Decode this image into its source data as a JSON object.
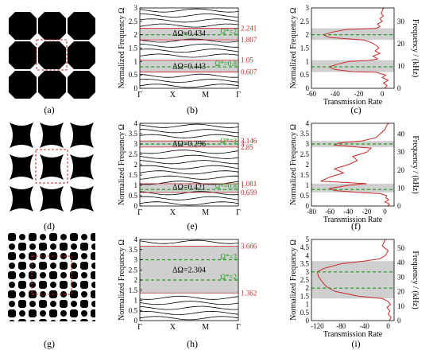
{
  "colors": {
    "gap": "#cfcfcf",
    "green": "#1a9e1a",
    "red": "#cc2a2a",
    "ink": "#000000"
  },
  "panel_labels": [
    "(a)",
    "(b)",
    "(c)",
    "(d)",
    "(e)",
    "(f)",
    "(g)",
    "(h)",
    "(i)"
  ],
  "band_axis": {
    "ylabel": "Normalized Frequency Ω",
    "xticks": [
      "Γ",
      "X",
      "M",
      "Γ"
    ]
  },
  "trans_axis": {
    "xlabel": "Transmission Rate",
    "ylabel_right": "Frequency / (kHz)"
  },
  "chart_data": [
    {
      "type": "line",
      "panel": "b",
      "ylim": [
        0,
        3
      ],
      "yticks": [
        "0",
        "0.5",
        "1",
        "1.5",
        "2",
        "2.5",
        "3"
      ],
      "gaps": [
        [
          0.607,
          1.05
        ],
        [
          1.807,
          2.241
        ]
      ],
      "gap_labels": [
        {
          "text": "ΔΩ=0.434",
          "y": 2.05
        },
        {
          "text": "ΔΩ=0.443",
          "y": 0.82
        }
      ],
      "targets": [
        {
          "text": "Ω*=2",
          "y": 2.0
        },
        {
          "text": "Ω*=0.8",
          "y": 0.8
        }
      ],
      "edge_labels": [
        {
          "text": "2.241",
          "y": 2.241
        },
        {
          "text": "1.807",
          "y": 1.807
        },
        {
          "text": "1.05",
          "y": 1.05
        },
        {
          "text": "0.607",
          "y": 0.607
        }
      ]
    },
    {
      "type": "line",
      "panel": "c",
      "xlim": [
        -60,
        10
      ],
      "xticks": [
        "-60",
        "-40",
        "-20",
        "0"
      ],
      "ylim": [
        0,
        3
      ],
      "yticks": [
        "0",
        "0.5",
        "1",
        "1.5",
        "2",
        "2.5",
        "3"
      ],
      "y2ticks": [
        "0",
        "10",
        "20",
        "30"
      ],
      "gaps": [
        [
          0.607,
          1.05
        ],
        [
          1.807,
          2.241
        ]
      ],
      "targets": [
        2.0,
        0.8
      ],
      "series": [
        {
          "y": [
            0.0,
            0.1,
            0.2,
            0.3,
            0.4,
            0.5,
            0.55,
            0.6,
            0.62,
            0.7,
            0.8,
            0.9,
            1.0,
            1.05,
            1.1,
            1.2,
            1.3,
            1.4,
            1.5,
            1.6,
            1.7,
            1.8,
            1.85,
            1.9,
            2.0,
            2.1,
            2.2,
            2.24,
            2.3,
            2.4,
            2.5,
            2.6,
            2.7,
            2.8,
            2.9,
            3.0
          ],
          "x": [
            2,
            4,
            1,
            5,
            0,
            3,
            -2,
            -5,
            -25,
            -40,
            -45,
            -38,
            -28,
            -10,
            -4,
            -8,
            -2,
            -6,
            -3,
            -5,
            -9,
            -15,
            -30,
            -45,
            -50,
            -42,
            -30,
            -5,
            -2,
            -4,
            0,
            -2,
            1,
            -1,
            0,
            1
          ]
        }
      ]
    },
    {
      "type": "line",
      "panel": "e",
      "ylim": [
        0,
        4
      ],
      "yticks": [
        "0",
        "0.5",
        "1",
        "1.5",
        "2",
        "2.5",
        "3",
        "3.5",
        "4"
      ],
      "gaps": [
        [
          0.659,
          1.081
        ],
        [
          2.85,
          3.146
        ]
      ],
      "gap_labels": [
        {
          "text": "ΔΩ=0.296",
          "y": 3.0
        },
        {
          "text": "ΔΩ=0.421",
          "y": 0.9
        }
      ],
      "targets": [
        {
          "text": "Ω*=3",
          "y": 3.0
        },
        {
          "text": "Ω*=0.8",
          "y": 0.8
        }
      ],
      "edge_labels": [
        {
          "text": "3.146",
          "y": 3.146
        },
        {
          "text": "3",
          "y": 3.0
        },
        {
          "text": "2.85",
          "y": 2.85
        },
        {
          "text": "1.081",
          "y": 1.081
        },
        {
          "text": "1",
          "y": 1.0
        },
        {
          "text": "0.659",
          "y": 0.659
        }
      ]
    },
    {
      "type": "line",
      "panel": "f",
      "xlim": [
        -80,
        10
      ],
      "xticks": [
        "-80",
        "-60",
        "-40",
        "-20",
        "0"
      ],
      "ylim": [
        0,
        4
      ],
      "yticks": [
        "0",
        "0.5",
        "1",
        "1.5",
        "2",
        "2.5",
        "3",
        "3.5",
        "4"
      ],
      "y2ticks": [
        "0",
        "10",
        "20",
        "30",
        "40"
      ],
      "gaps": [
        [
          0.659,
          1.081
        ],
        [
          2.85,
          3.146
        ]
      ],
      "targets": [
        3.0,
        0.8
      ],
      "series": [
        {
          "y": [
            0.0,
            0.1,
            0.2,
            0.3,
            0.4,
            0.5,
            0.6,
            0.66,
            0.75,
            0.85,
            1.0,
            1.08,
            1.2,
            1.4,
            1.6,
            1.8,
            2.0,
            2.2,
            2.4,
            2.6,
            2.8,
            2.85,
            2.95,
            3.05,
            3.15,
            3.3,
            3.5,
            3.7,
            3.9,
            4.0
          ],
          "x": [
            3,
            5,
            0,
            4,
            1,
            2,
            -5,
            -30,
            -55,
            -60,
            -40,
            -20,
            -70,
            -60,
            -45,
            -55,
            -40,
            -30,
            -35,
            -20,
            -15,
            -30,
            -55,
            -50,
            -25,
            -10,
            -5,
            0,
            2,
            4
          ]
        }
      ]
    },
    {
      "type": "line",
      "panel": "h",
      "ylim": [
        0,
        4
      ],
      "yticks": [
        "0",
        "0.5",
        "1",
        "1.5",
        "2",
        "2.5",
        "3",
        "3.5",
        "4"
      ],
      "gaps": [
        [
          1.362,
          3.666
        ]
      ],
      "gap_labels": [
        {
          "text": "ΔΩ=2.304",
          "y": 2.5
        }
      ],
      "targets": [
        {
          "text": "Ω*=3",
          "y": 3.0
        },
        {
          "text": "Ω*=2",
          "y": 2.0
        }
      ],
      "edge_labels": [
        {
          "text": "3.666",
          "y": 3.666
        },
        {
          "text": "1.362",
          "y": 1.362
        }
      ]
    },
    {
      "type": "line",
      "panel": "i",
      "xlim": [
        -130,
        10
      ],
      "xticks": [
        "-120",
        "-80",
        "-40",
        "0"
      ],
      "ylim": [
        0,
        5
      ],
      "yticks": [
        "0",
        "0.5",
        "1",
        "1.5",
        "2",
        "2.5",
        "3",
        "3.5",
        "4",
        "4.5",
        "5"
      ],
      "y2ticks": [
        "0",
        "10",
        "20",
        "30",
        "40",
        "50"
      ],
      "gaps": [
        [
          1.362,
          3.666
        ]
      ],
      "targets": [
        3.0,
        2.0
      ],
      "series": [
        {
          "y": [
            0.0,
            0.2,
            0.4,
            0.6,
            0.8,
            1.0,
            1.2,
            1.36,
            1.5,
            1.8,
            2.1,
            2.4,
            2.7,
            3.0,
            3.2,
            3.5,
            3.67,
            3.8,
            4.0,
            4.3,
            4.6,
            5.0
          ],
          "x": [
            2,
            5,
            0,
            3,
            -2,
            4,
            -1,
            -10,
            -50,
            -90,
            -105,
            -112,
            -118,
            -120,
            -110,
            -80,
            -40,
            -15,
            -5,
            0,
            -10,
            -5
          ]
        }
      ]
    }
  ]
}
